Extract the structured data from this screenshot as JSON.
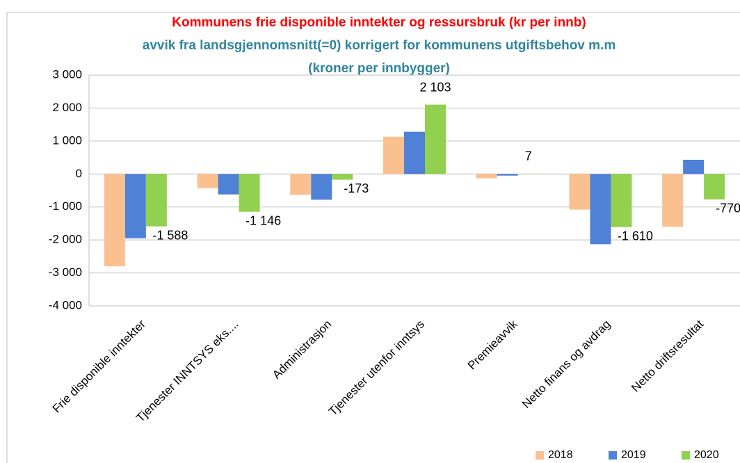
{
  "chart_data": {
    "type": "bar",
    "title": "Kommunens frie disponible inntekter og ressursbruk (kr  per innb)",
    "subtitle": [
      "avvik fra landsgjennomsnitt(=0) korrigert for kommunens utgiftsbehov m.m",
      "(kroner per innbygger)"
    ],
    "categories": [
      "Frie disponible inntekter",
      "Tjenester INNTSYS eks....",
      "Administrasjon",
      "Tjenester utenfor inntsys",
      "Premieavvik",
      "Netto finans og avdrag",
      "Netto driftsresultat"
    ],
    "series": [
      {
        "name": "2018",
        "color": "#fac090",
        "values": [
          -2800,
          -430,
          -630,
          1130,
          -130,
          -1080,
          -1600
        ]
      },
      {
        "name": "2019",
        "color": "#4f81d7",
        "values": [
          -1950,
          -620,
          -780,
          1280,
          -50,
          -2130,
          430
        ]
      },
      {
        "name": "2020",
        "color": "#92d050",
        "values": [
          -1588,
          -1146,
          -173,
          2103,
          7,
          -1610,
          -770
        ],
        "value_labels": [
          "-1 588",
          "-1 146",
          "-173",
          "2 103",
          "7",
          "-1 610",
          "-770"
        ]
      }
    ],
    "ylim": [
      -4000,
      3000
    ],
    "yticks": [
      {
        "value": -4000,
        "label": "-4 000"
      },
      {
        "value": -3000,
        "label": "-3 000"
      },
      {
        "value": -2000,
        "label": "-2 000"
      },
      {
        "value": -1000,
        "label": "-1 000"
      },
      0,
      {
        "value": 1000,
        "label": "1 000"
      },
      {
        "value": 2000,
        "label": "2 000"
      },
      {
        "value": 3000,
        "label": "3 000"
      }
    ],
    "grid": true,
    "legend": "bottom-right"
  }
}
